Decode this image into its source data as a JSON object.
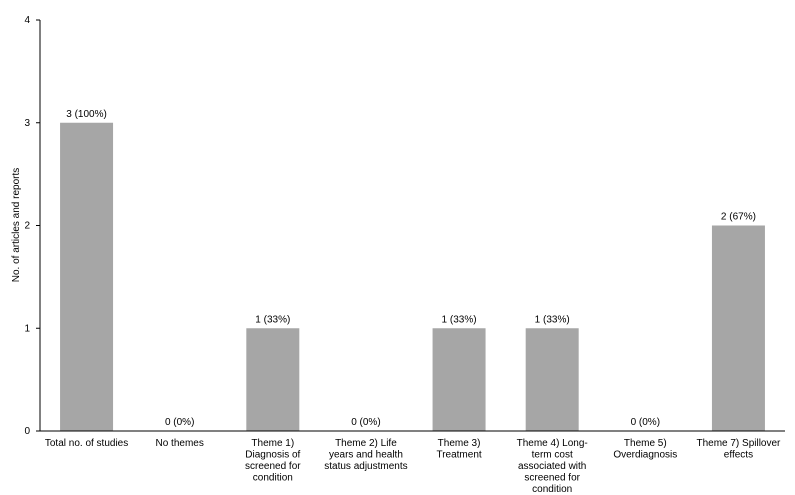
{
  "chart_data": {
    "type": "bar",
    "title": "",
    "xlabel": "",
    "ylabel": "No. of articles and reports",
    "ylim": [
      0,
      4
    ],
    "yticks": [
      "0",
      "1",
      "2",
      "3",
      "4"
    ],
    "grid": false,
    "bar_color": "#a6a6a6",
    "categories": [
      [
        "Total no. of studies"
      ],
      [
        "No themes"
      ],
      [
        "Theme 1)",
        "Diagnosis of",
        "screened for",
        "condition"
      ],
      [
        "Theme 2) Life",
        "years and health",
        "status adjustments"
      ],
      [
        "Theme 3)",
        "Treatment"
      ],
      [
        "Theme 4) Long-",
        "term cost",
        "associated with",
        "screened for",
        "condition"
      ],
      [
        "Theme 5)",
        "Overdiagnosis"
      ],
      [
        "Theme 7) Spillover",
        "effects"
      ]
    ],
    "values": [
      3,
      0,
      1,
      0,
      1,
      1,
      0,
      2
    ],
    "data_labels": [
      "3 (100%)",
      "0 (0%)",
      "1 (33%)",
      "0 (0%)",
      "1 (33%)",
      "1 (33%)",
      "0 (0%)",
      "2 (67%)"
    ]
  }
}
